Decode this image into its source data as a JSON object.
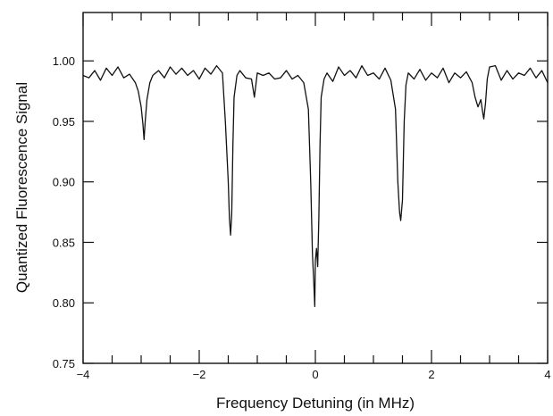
{
  "chart_data": {
    "type": "line",
    "title": "",
    "xlabel": "Frequency Detuning (in MHz)",
    "ylabel": "Quantized Fluorescence Signal",
    "xlim": [
      -4,
      4
    ],
    "ylim": [
      0.75,
      1.04
    ],
    "x_ticks": [
      -4,
      -2,
      0,
      2,
      4
    ],
    "x_tick_labels": [
      "−4",
      "−2",
      "0",
      "2",
      "4"
    ],
    "x_minor_step": 0.5,
    "y_ticks": [
      0.75,
      0.8,
      0.85,
      0.9,
      0.95,
      1.0
    ],
    "y_tick_labels": [
      "0.75",
      "0.80",
      "0.85",
      "0.90",
      "0.95",
      "1.00"
    ],
    "grid": false,
    "line_color": "#111111",
    "series": [
      {
        "x": [
          -4.0,
          -3.9,
          -3.8,
          -3.7,
          -3.6,
          -3.5,
          -3.4,
          -3.3,
          -3.2,
          -3.1,
          -3.05,
          -3.0,
          -2.97,
          -2.95,
          -2.93,
          -2.9,
          -2.85,
          -2.8,
          -2.7,
          -2.6,
          -2.5,
          -2.4,
          -2.3,
          -2.2,
          -2.1,
          -2.0,
          -1.9,
          -1.8,
          -1.7,
          -1.6,
          -1.55,
          -1.5,
          -1.48,
          -1.46,
          -1.44,
          -1.42,
          -1.4,
          -1.35,
          -1.3,
          -1.2,
          -1.1,
          -1.05,
          -1.0,
          -0.9,
          -0.8,
          -0.7,
          -0.6,
          -0.5,
          -0.4,
          -0.3,
          -0.2,
          -0.12,
          -0.08,
          -0.05,
          -0.03,
          -0.01,
          0.0,
          0.02,
          0.04,
          0.06,
          0.08,
          0.1,
          0.15,
          0.2,
          0.3,
          0.4,
          0.5,
          0.6,
          0.7,
          0.8,
          0.9,
          1.0,
          1.1,
          1.2,
          1.3,
          1.38,
          1.42,
          1.45,
          1.47,
          1.5,
          1.53,
          1.56,
          1.6,
          1.7,
          1.8,
          1.9,
          2.0,
          2.1,
          2.2,
          2.3,
          2.4,
          2.5,
          2.6,
          2.7,
          2.75,
          2.8,
          2.85,
          2.88,
          2.9,
          2.93,
          2.96,
          3.0,
          3.1,
          3.2,
          3.3,
          3.4,
          3.5,
          3.6,
          3.7,
          3.8,
          3.9,
          4.0
        ],
        "y": [
          0.988,
          0.986,
          0.992,
          0.984,
          0.994,
          0.988,
          0.995,
          0.986,
          0.989,
          0.982,
          0.975,
          0.962,
          0.948,
          0.935,
          0.95,
          0.968,
          0.982,
          0.988,
          0.992,
          0.986,
          0.995,
          0.989,
          0.994,
          0.988,
          0.992,
          0.985,
          0.994,
          0.989,
          0.996,
          0.99,
          0.95,
          0.9,
          0.87,
          0.856,
          0.874,
          0.93,
          0.97,
          0.988,
          0.992,
          0.986,
          0.985,
          0.97,
          0.99,
          0.988,
          0.99,
          0.985,
          0.986,
          0.992,
          0.985,
          0.988,
          0.982,
          0.96,
          0.9,
          0.84,
          0.82,
          0.797,
          0.835,
          0.845,
          0.83,
          0.87,
          0.93,
          0.97,
          0.985,
          0.99,
          0.983,
          0.995,
          0.988,
          0.992,
          0.986,
          0.996,
          0.988,
          0.99,
          0.985,
          0.994,
          0.984,
          0.96,
          0.9,
          0.875,
          0.868,
          0.885,
          0.95,
          0.98,
          0.99,
          0.985,
          0.993,
          0.984,
          0.99,
          0.986,
          0.994,
          0.982,
          0.99,
          0.986,
          0.991,
          0.982,
          0.97,
          0.962,
          0.968,
          0.958,
          0.952,
          0.965,
          0.985,
          0.995,
          0.996,
          0.984,
          0.992,
          0.985,
          0.99,
          0.988,
          0.994,
          0.986,
          0.992,
          0.982
        ]
      }
    ]
  }
}
